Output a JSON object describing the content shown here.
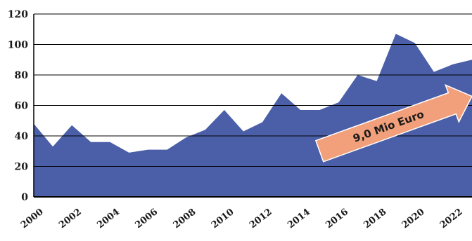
{
  "chart_data": {
    "type": "area",
    "title": "",
    "xlabel": "",
    "ylabel": "",
    "x": [
      2000,
      2001,
      2002,
      2003,
      2004,
      2005,
      2006,
      2007,
      2008,
      2009,
      2010,
      2011,
      2012,
      2013,
      2014,
      2015,
      2016,
      2017,
      2018,
      2019,
      2020,
      2021,
      2022,
      2023
    ],
    "values": [
      48,
      33,
      47,
      36,
      36,
      29,
      31,
      31,
      39,
      44,
      57,
      43,
      49,
      68,
      57,
      57,
      62,
      80,
      76,
      107,
      101,
      82,
      87,
      90
    ],
    "xlim": [
      2000,
      2023
    ],
    "ylim": [
      0,
      120
    ],
    "y_ticks": [
      "0",
      "20",
      "40",
      "60",
      "80",
      "100",
      "120"
    ],
    "x_ticks": [
      "2000",
      "2002",
      "2004",
      "2006",
      "2008",
      "2010",
      "2012",
      "2014",
      "2016",
      "2018",
      "2020",
      "2022"
    ],
    "grid": true,
    "legend": "none",
    "annotation": {
      "text": "9,0 Mio Euro",
      "shape": "arrow",
      "from": [
        2015,
        30
      ],
      "to": [
        2023,
        66
      ],
      "color": "#f2a07b"
    },
    "colors": {
      "area": "#4a5fa8",
      "grid": "#000000"
    }
  }
}
